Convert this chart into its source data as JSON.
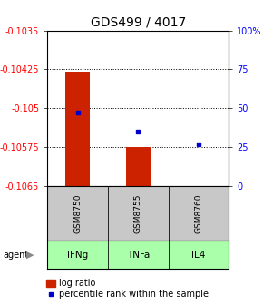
{
  "title": "GDS499 / 4017",
  "samples": [
    "GSM8750",
    "GSM8755",
    "GSM8760"
  ],
  "agents": [
    "IFNg",
    "TNFa",
    "IL4"
  ],
  "log_ratios": [
    -0.1043,
    -0.10575,
    -0.1065
  ],
  "baseline": -0.1065,
  "percentile_ranks": [
    47,
    35,
    27
  ],
  "ylim_left": [
    -0.1065,
    -0.1035
  ],
  "yticks_left": [
    -0.1065,
    -0.10575,
    -0.105,
    -0.10425,
    -0.1035
  ],
  "yticks_right": [
    0,
    25,
    50,
    75,
    100
  ],
  "bar_color": "#cc2200",
  "dot_color": "#0000cc",
  "agent_color": "#aaffaa",
  "sample_bg": "#c8c8c8",
  "plot_bg": "#ffffff",
  "title_fontsize": 10,
  "tick_fontsize": 7,
  "legend_fontsize": 7
}
